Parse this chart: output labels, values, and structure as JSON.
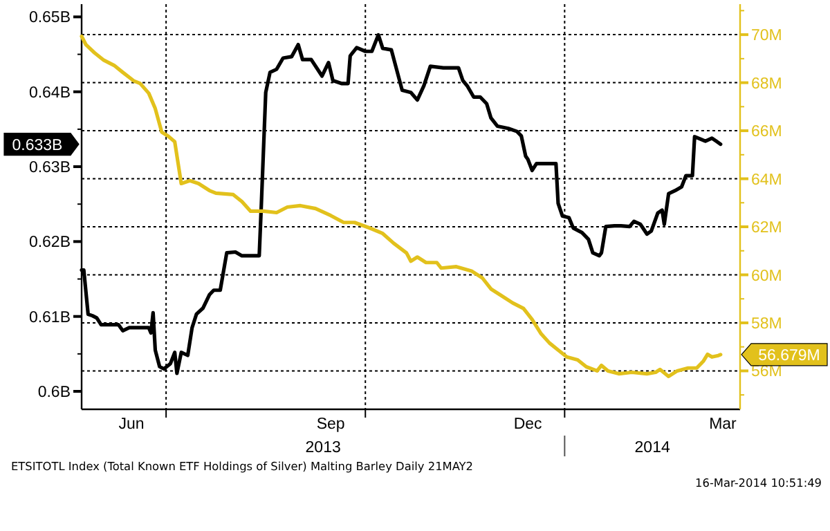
{
  "chart_data": {
    "type": "line",
    "xlim": [
      "2013-05-23",
      "2014-03-23"
    ],
    "xticks": [
      {
        "value": "2013-06-15",
        "label": "Jun"
      },
      {
        "value": "2013-07-01",
        "label": null
      },
      {
        "value": "2013-09-15",
        "label": "Sep"
      },
      {
        "value": "2013-10-01",
        "label": null
      },
      {
        "value": "2013-12-15",
        "label": "Dec"
      },
      {
        "value": "2014-01-01",
        "label": null
      },
      {
        "value": "2014-03-15",
        "label": "Mar"
      }
    ],
    "ylim": [
      0.5976,
      0.6517
    ],
    "yticks": [
      {
        "value": 0.6,
        "label": "0.6B"
      },
      {
        "value": 0.605,
        "label": null
      },
      {
        "value": 0.61,
        "label": "0.61B"
      },
      {
        "value": 0.615,
        "label": null
      },
      {
        "value": 0.62,
        "label": "0.62B"
      },
      {
        "value": 0.625,
        "label": null
      },
      {
        "value": 0.63,
        "label": "0.63B"
      },
      {
        "value": 0.635,
        "label": null
      },
      {
        "value": 0.64,
        "label": "0.64B"
      },
      {
        "value": 0.645,
        "label": null
      },
      {
        "value": 0.65,
        "label": "0.65B"
      }
    ],
    "y2lim": [
      54.4,
      71.27
    ],
    "y2ticks": [
      {
        "value": 55,
        "label": null
      },
      {
        "value": 56,
        "label": "56M"
      },
      {
        "value": 57,
        "label": null
      },
      {
        "value": 58,
        "label": "58M"
      },
      {
        "value": 59,
        "label": null
      },
      {
        "value": 60,
        "label": "60M"
      },
      {
        "value": 61,
        "label": null
      },
      {
        "value": 62,
        "label": "62M"
      },
      {
        "value": 63,
        "label": null
      },
      {
        "value": 64,
        "label": "64M"
      },
      {
        "value": 65,
        "label": null
      },
      {
        "value": 66,
        "label": "66M"
      },
      {
        "value": 67,
        "label": null
      },
      {
        "value": 68,
        "label": "68M"
      },
      {
        "value": 69,
        "label": null
      },
      {
        "value": 70,
        "label": "70M"
      },
      {
        "value": 71,
        "label": null
      }
    ],
    "grid": true,
    "series": [
      {
        "color": "#000000",
        "x": [
          "2013-05-23",
          "2013-05-24",
          "2013-05-26",
          "2013-05-28",
          "2013-05-30",
          "2013-06-01",
          "2013-06-05",
          "2013-06-09",
          "2013-06-11",
          "2013-06-14",
          "2013-06-18",
          "2013-06-23",
          "2013-06-24",
          "2013-06-25",
          "2013-06-26",
          "2013-06-28",
          "2013-06-30",
          "2013-07-03",
          "2013-07-05",
          "2013-07-06",
          "2013-07-08",
          "2013-07-11",
          "2013-07-13",
          "2013-07-15",
          "2013-07-18",
          "2013-07-21",
          "2013-07-23",
          "2013-07-26",
          "2013-07-29",
          "2013-08-02",
          "2013-08-05",
          "2013-08-13",
          "2013-08-14",
          "2013-08-16",
          "2013-08-18",
          "2013-08-21",
          "2013-08-24",
          "2013-08-28",
          "2013-08-31",
          "2013-09-02",
          "2013-09-06",
          "2013-09-11",
          "2013-09-14",
          "2013-09-16",
          "2013-09-20",
          "2013-09-23",
          "2013-09-24",
          "2013-09-27",
          "2013-10-01",
          "2013-10-04",
          "2013-10-07",
          "2013-10-09",
          "2013-10-13",
          "2013-10-18",
          "2013-10-22",
          "2013-10-25",
          "2013-10-28",
          "2013-10-31",
          "2013-11-06",
          "2013-11-13",
          "2013-11-15",
          "2013-11-17",
          "2013-11-20",
          "2013-11-23",
          "2013-11-26",
          "2013-11-28",
          "2013-12-01",
          "2013-12-06",
          "2013-12-10",
          "2013-12-12",
          "2013-12-14",
          "2013-12-15",
          "2013-12-17",
          "2013-12-19",
          "2013-12-24",
          "2013-12-28",
          "2013-12-29",
          "2013-12-31",
          "2014-01-03",
          "2014-01-05",
          "2014-01-09",
          "2014-01-12",
          "2014-01-14",
          "2014-01-17",
          "2014-01-18",
          "2014-01-20",
          "2014-01-24",
          "2014-01-27",
          "2014-01-31",
          "2014-02-02",
          "2014-02-05",
          "2014-02-08",
          "2014-02-10",
          "2014-02-13",
          "2014-02-15",
          "2014-02-16",
          "2014-02-18",
          "2014-02-21",
          "2014-02-24",
          "2014-02-26",
          "2014-03-01",
          "2014-03-02",
          "2014-03-07",
          "2014-03-10",
          "2014-03-12",
          "2014-03-14"
        ],
        "values": [
          0.6162,
          0.6162,
          0.6103,
          0.6101,
          0.6098,
          0.6089,
          0.6089,
          0.6089,
          0.6081,
          0.6085,
          0.6085,
          0.6085,
          0.6078,
          0.6105,
          0.6055,
          0.6033,
          0.603,
          0.6037,
          0.6052,
          0.6024,
          0.6052,
          0.6048,
          0.6085,
          0.6103,
          0.6111,
          0.6129,
          0.6135,
          0.6135,
          0.6185,
          0.6186,
          0.6181,
          0.6181,
          0.6251,
          0.6399,
          0.6426,
          0.643,
          0.6445,
          0.6447,
          0.6463,
          0.6443,
          0.6443,
          0.6421,
          0.6439,
          0.6415,
          0.6411,
          0.6411,
          0.6448,
          0.6459,
          0.6454,
          0.6454,
          0.6476,
          0.6458,
          0.6456,
          0.6402,
          0.6399,
          0.6389,
          0.6408,
          0.6434,
          0.6432,
          0.6432,
          0.6415,
          0.6408,
          0.6393,
          0.6393,
          0.6384,
          0.6365,
          0.6354,
          0.6351,
          0.6347,
          0.6341,
          0.6314,
          0.631,
          0.6295,
          0.6304,
          0.6304,
          0.6304,
          0.6251,
          0.6234,
          0.6232,
          0.6218,
          0.6212,
          0.6203,
          0.6185,
          0.6181,
          0.6185,
          0.622,
          0.6221,
          0.6221,
          0.622,
          0.6227,
          0.6223,
          0.621,
          0.6214,
          0.6238,
          0.6242,
          0.6223,
          0.6264,
          0.6268,
          0.6273,
          0.6288,
          0.6288,
          0.634,
          0.6334,
          0.6338,
          0.6334,
          0.633
        ]
      },
      {
        "color": "#e2c11c",
        "axis": "y2",
        "x": [
          "2013-05-23",
          "2013-05-25",
          "2013-05-29",
          "2013-06-02",
          "2013-06-07",
          "2013-06-11",
          "2013-06-16",
          "2013-06-19",
          "2013-06-23",
          "2013-06-26",
          "2013-06-29",
          "2013-07-02",
          "2013-07-05",
          "2013-07-08",
          "2013-07-12",
          "2013-07-16",
          "2013-07-21",
          "2013-07-24",
          "2013-08-01",
          "2013-08-05",
          "2013-08-09",
          "2013-08-15",
          "2013-08-21",
          "2013-08-26",
          "2013-09-01",
          "2013-09-08",
          "2013-09-15",
          "2013-09-21",
          "2013-09-26",
          "2013-10-03",
          "2013-10-09",
          "2013-10-14",
          "2013-10-20",
          "2013-10-22",
          "2013-10-25",
          "2013-10-29",
          "2013-11-03",
          "2013-11-05",
          "2013-11-12",
          "2013-11-19",
          "2013-11-24",
          "2013-11-28",
          "2013-12-03",
          "2013-12-08",
          "2013-12-13",
          "2013-12-17",
          "2013-12-21",
          "2013-12-25",
          "2013-12-29",
          "2014-01-02",
          "2014-01-07",
          "2014-01-11",
          "2014-01-16",
          "2014-01-18",
          "2014-01-21",
          "2014-01-26",
          "2014-02-01",
          "2014-02-08",
          "2014-02-12",
          "2014-02-14",
          "2014-02-18",
          "2014-02-22",
          "2014-02-27",
          "2014-03-03",
          "2014-03-06",
          "2014-03-08",
          "2014-03-10",
          "2014-03-13",
          "2014-03-14"
        ],
        "values": [
          69.93,
          69.58,
          69.24,
          68.95,
          68.72,
          68.43,
          68.08,
          67.97,
          67.56,
          66.92,
          65.94,
          65.77,
          65.54,
          63.8,
          63.92,
          63.8,
          63.51,
          63.4,
          63.34,
          63.05,
          62.65,
          62.65,
          62.59,
          62.82,
          62.88,
          62.76,
          62.47,
          62.18,
          62.18,
          61.95,
          61.72,
          61.32,
          60.91,
          60.57,
          60.74,
          60.51,
          60.51,
          60.28,
          60.34,
          60.16,
          59.87,
          59.41,
          59.12,
          58.83,
          58.6,
          58.14,
          57.56,
          57.16,
          56.87,
          56.58,
          56.46,
          56.17,
          56,
          56.23,
          56,
          55.88,
          55.94,
          55.88,
          55.94,
          56.06,
          55.77,
          56,
          56.12,
          56.12,
          56.4,
          56.69,
          56.58,
          56.64,
          56.679
        ]
      }
    ],
    "annotations": [
      "2013",
      "2014",
      "0.633B",
      "56.679M",
      "ETSITOTL Index (Total Known ETF Holdings of Silver) Malting Barley  Daily 21MAY2",
      "16-Mar-2014 10:51:49"
    ]
  }
}
